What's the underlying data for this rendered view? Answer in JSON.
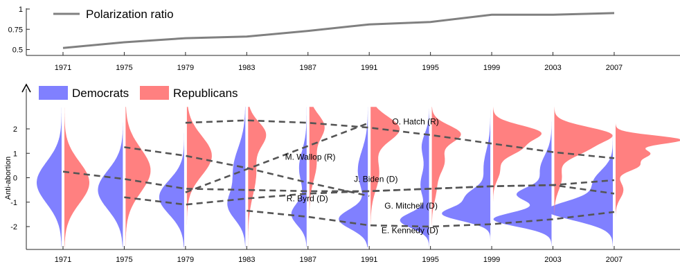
{
  "chart_data": [
    {
      "type": "line",
      "legend": {
        "label": "Polarization ratio",
        "position": "top-left"
      },
      "x": [
        1971,
        1975,
        1979,
        1983,
        1987,
        1991,
        1995,
        1999,
        2003,
        2007
      ],
      "series": [
        {
          "name": "Polarization ratio",
          "values": [
            0.52,
            0.59,
            0.64,
            0.66,
            0.73,
            0.81,
            0.84,
            0.93,
            0.93,
            0.95
          ]
        }
      ],
      "xlim": [
        1966,
        2015
      ],
      "ylim": [
        0.42,
        1.0
      ],
      "yticks": [
        "0.5",
        "0.75",
        "1"
      ],
      "xticks": [
        "1971",
        "1975",
        "1979",
        "1983",
        "1987",
        "1991",
        "1995",
        "1999",
        "2003",
        "2007"
      ],
      "colors": {
        "line": "#808080",
        "axis": "#262626"
      }
    },
    {
      "type": "area",
      "subtype": "split violin",
      "ylabel": "Anti-abortion",
      "ylim": [
        -2.9,
        3.0
      ],
      "yticks": [
        "-2",
        "-1",
        "0",
        "1",
        "2"
      ],
      "xticks": [
        "1971",
        "1975",
        "1979",
        "1983",
        "1987",
        "1991",
        "1995",
        "1999",
        "2003",
        "2007"
      ],
      "legend": {
        "position": "top-left",
        "entries": [
          "Democrats",
          "Republicans"
        ]
      },
      "colors": {
        "dem": "#8080ff",
        "rep": "#ff8080",
        "senator_line": "#555555"
      },
      "violin_scale": 2007,
      "series": [
        {
          "name": "Democrats",
          "side": "left",
          "years": [
            1971,
            1975,
            1979,
            1983,
            1987,
            1991,
            1995,
            1999,
            2003,
            2007
          ],
          "components": [
            [
              [
                1,
                -0.2,
                0.85
              ]
            ],
            [
              [
                1,
                -0.5,
                0.8
              ]
            ],
            [
              [
                1,
                -0.8,
                0.7
              ]
            ],
            [
              [
                0.6,
                -1.2,
                0.55
              ],
              [
                0.5,
                0.3,
                0.9
              ]
            ],
            [
              [
                0.8,
                -1.5,
                0.45
              ],
              [
                0.4,
                0.4,
                0.7
              ]
            ],
            [
              [
                1,
                -1.7,
                0.4
              ],
              [
                0.35,
                0.3,
                0.8
              ]
            ],
            [
              [
                1,
                -1.75,
                0.32
              ],
              [
                0.3,
                -0.3,
                0.6
              ],
              [
                0.25,
                1.3,
                0.5
              ]
            ],
            [
              [
                1,
                -1.5,
                0.28
              ],
              [
                0.5,
                -0.8,
                0.35
              ],
              [
                0.15,
                0.4,
                0.7
              ]
            ],
            [
              [
                1,
                -1.7,
                0.3
              ],
              [
                0.55,
                -0.7,
                0.3
              ],
              [
                0.2,
                0.3,
                0.6
              ]
            ],
            [
              [
                1,
                -1.35,
                0.4
              ],
              [
                0.3,
                -0.2,
                0.5
              ]
            ]
          ]
        },
        {
          "name": "Republicans",
          "side": "right",
          "years": [
            1971,
            1975,
            1979,
            1983,
            1987,
            1991,
            1995,
            1999,
            2003,
            2007
          ],
          "components": [
            [
              [
                1,
                -0.2,
                0.85
              ]
            ],
            [
              [
                1,
                0.3,
                0.9
              ]
            ],
            [
              [
                1,
                0.9,
                0.8
              ]
            ],
            [
              [
                1,
                1.8,
                0.5
              ],
              [
                0.5,
                0.2,
                0.9
              ]
            ],
            [
              [
                1,
                2.1,
                0.5
              ],
              [
                0.5,
                0.6,
                0.7
              ]
            ],
            [
              [
                1,
                2.0,
                0.5
              ],
              [
                0.3,
                0.2,
                0.7
              ]
            ],
            [
              [
                1,
                1.8,
                0.35
              ],
              [
                0.45,
                0.7,
                0.5
              ],
              [
                0.15,
                -0.5,
                0.5
              ]
            ],
            [
              [
                1,
                1.85,
                0.3
              ],
              [
                0.55,
                1.2,
                0.3
              ],
              [
                0.15,
                0.3,
                0.4
              ]
            ],
            [
              [
                1,
                1.8,
                0.3
              ],
              [
                0.6,
                1.2,
                0.35
              ],
              [
                0.15,
                0.0,
                0.5
              ]
            ],
            [
              [
                1,
                1.55,
                0.18
              ],
              [
                0.5,
                1.0,
                0.2
              ],
              [
                0.35,
                0.5,
                0.22
              ],
              [
                0.12,
                -0.5,
                0.35
              ]
            ]
          ]
        }
      ],
      "senators": [
        {
          "label": "O. Hatch (R)",
          "points": [
            [
              1979,
              2.25
            ],
            [
              1983,
              2.35
            ],
            [
              1987,
              2.25
            ],
            [
              1991,
              2.05
            ],
            [
              1995,
              1.75
            ],
            [
              1999,
              1.4
            ],
            [
              2003,
              1.05
            ],
            [
              2007,
              0.8
            ]
          ]
        },
        {
          "label": "M. Wallop (R)",
          "points": [
            [
              1979,
              -0.6
            ],
            [
              1983,
              0.35
            ],
            [
              1987,
              1.3
            ],
            [
              1991,
              2.25
            ]
          ]
        },
        {
          "label": "J. Biden (D)",
          "points": [
            [
              1975,
              -0.8
            ],
            [
              1979,
              -1.1
            ],
            [
              1983,
              -0.85
            ],
            [
              1987,
              -0.65
            ],
            [
              1991,
              -0.55
            ],
            [
              1995,
              -0.45
            ],
            [
              1999,
              -0.35
            ],
            [
              2003,
              -0.3
            ],
            [
              2007,
              -0.65
            ]
          ]
        },
        {
          "label": "R. Byrd (D)",
          "points": [
            [
              1971,
              0.25
            ],
            [
              1975,
              -0.05
            ],
            [
              1979,
              -0.45
            ],
            [
              1983,
              -0.5
            ],
            [
              1987,
              -0.55
            ],
            [
              1991,
              -0.55
            ],
            [
              1995,
              -0.45
            ],
            [
              1999,
              -0.35
            ],
            [
              2003,
              -0.3
            ],
            [
              2007,
              -0.1
            ]
          ]
        },
        {
          "label": "G. Mitchell (D)",
          "points": [
            [
              1975,
              1.25
            ],
            [
              1979,
              0.9
            ],
            [
              1983,
              0.4
            ],
            [
              1987,
              -0.2
            ],
            [
              1991,
              -0.75
            ]
          ]
        },
        {
          "label": "E. Kennedy (D)",
          "points": [
            [
              1983,
              -1.35
            ],
            [
              1987,
              -1.6
            ],
            [
              1991,
              -1.95
            ],
            [
              1995,
              -2.0
            ],
            [
              1999,
              -1.9
            ],
            [
              2003,
              -1.7
            ],
            [
              2007,
              -1.4
            ]
          ]
        }
      ],
      "annotations": [
        {
          "text": "O. Hatch (R)",
          "x": 1992.5,
          "y": 2.3
        },
        {
          "text": "M. Wallop (R)",
          "x": 1985.5,
          "y": 0.85
        },
        {
          "text": "J. Biden (D)",
          "x": 1990,
          "y": -0.05
        },
        {
          "text": "R. Byrd (D)",
          "x": 1985.6,
          "y": -0.85
        },
        {
          "text": "G. Mitchell (D)",
          "x": 1992,
          "y": -1.15
        },
        {
          "text": "E. Kennedy (D)",
          "x": 1991.8,
          "y": -2.15
        }
      ]
    }
  ]
}
